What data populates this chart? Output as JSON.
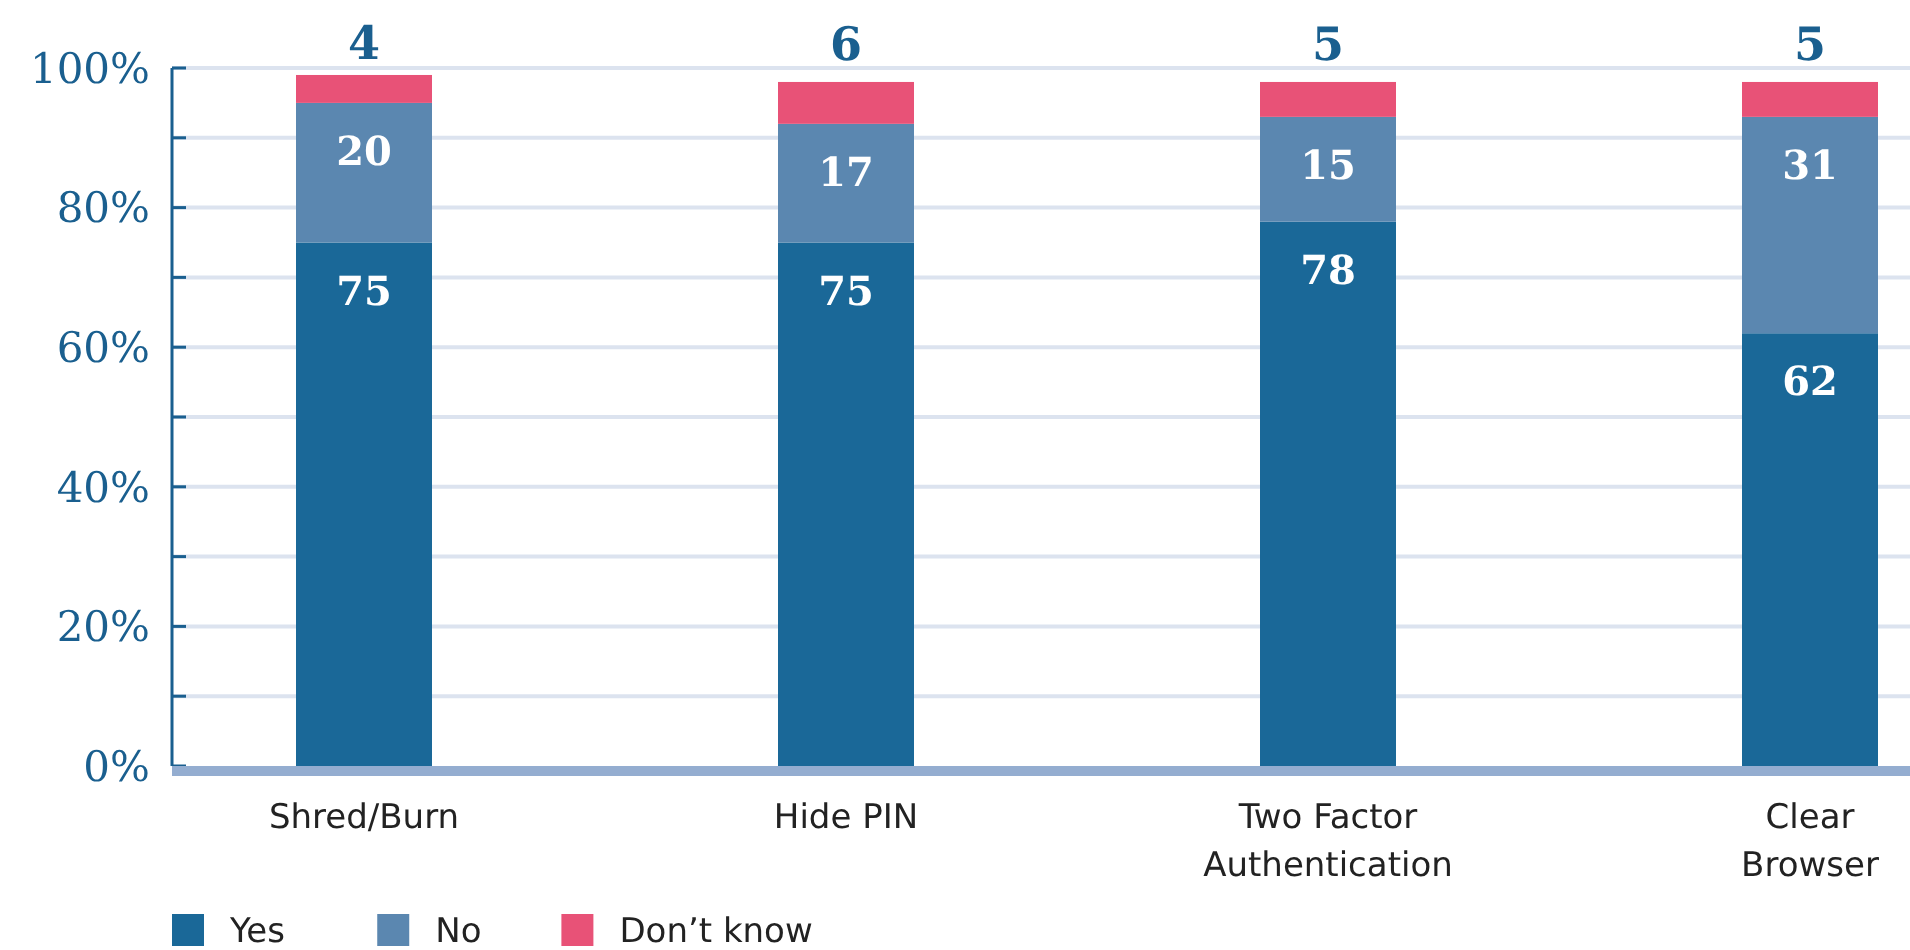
{
  "chart_data": {
    "type": "bar",
    "stacked": true,
    "categories": [
      "Shred/Burn",
      "Hide PIN",
      "Two Factor\nAuthentication",
      "Clear\nBrowser"
    ],
    "series": [
      {
        "name": "Yes",
        "color": "#1a6898",
        "values": [
          75,
          75,
          78,
          62
        ]
      },
      {
        "name": "No",
        "color": "#5b87b0",
        "values": [
          20,
          17,
          15,
          31
        ]
      },
      {
        "name": "Don’t know",
        "color": "#e85277",
        "values": [
          4,
          6,
          5,
          5
        ]
      }
    ],
    "ylim": [
      0,
      100
    ],
    "yticks": [
      {
        "value": 0,
        "label": "0%"
      },
      {
        "value": 10,
        "label": null
      },
      {
        "value": 20,
        "label": "20%"
      },
      {
        "value": 30,
        "label": null
      },
      {
        "value": 40,
        "label": "40%"
      },
      {
        "value": 50,
        "label": null
      },
      {
        "value": 60,
        "label": "60%"
      },
      {
        "value": 70,
        "label": null
      },
      {
        "value": 80,
        "label": "80%"
      },
      {
        "value": 90,
        "label": null
      },
      {
        "value": 100,
        "label": "100%"
      }
    ],
    "grid": "y",
    "legend": "bottom left",
    "data_labels": true
  }
}
